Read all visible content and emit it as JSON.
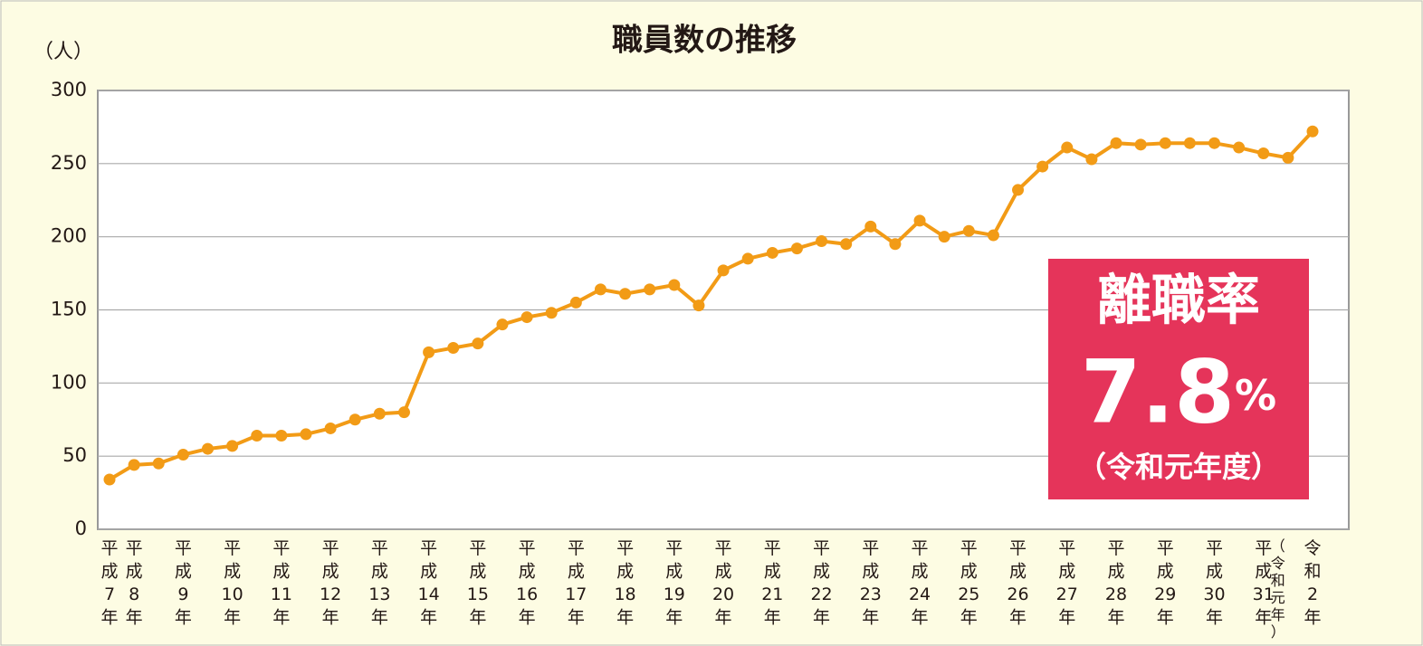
{
  "chart_data": {
    "type": "line",
    "title": "職員数の推移",
    "y_label": "（人）",
    "categories": [
      "平成7年",
      "平成8年",
      null,
      "平成9年",
      null,
      "平成10年",
      null,
      "平成11年",
      null,
      "平成12年",
      null,
      "平成13年",
      null,
      "平成14年",
      null,
      "平成15年",
      null,
      "平成16年",
      null,
      "平成17年",
      null,
      "平成18年",
      null,
      "平成19年",
      null,
      "平成20年",
      null,
      "平成21年",
      null,
      "平成22年",
      null,
      "平成23年",
      null,
      "平成24年",
      null,
      "平成25年",
      null,
      "平成26年",
      null,
      "平成27年",
      null,
      "平成28年",
      null,
      "平成29年",
      null,
      "平成30年",
      null,
      "平成31年",
      null,
      "令和2年"
    ],
    "category_note": "（令和元年）",
    "series": [
      {
        "name": "職員数",
        "color": "#f29b16",
        "values": [
          34,
          44,
          45,
          51,
          55,
          57,
          64,
          64,
          65,
          69,
          75,
          79,
          80,
          121,
          124,
          127,
          140,
          145,
          148,
          155,
          164,
          161,
          164,
          167,
          153,
          177,
          185,
          189,
          192,
          197,
          195,
          207,
          195,
          211,
          200,
          204,
          201,
          232,
          248,
          261,
          253,
          264,
          263,
          264,
          264,
          264,
          261,
          257,
          254,
          272
        ]
      }
    ],
    "ylim": [
      0,
      300
    ],
    "yticks": [
      0,
      50,
      100,
      150,
      200,
      250,
      300
    ],
    "grid": true,
    "callout": {
      "heading": "離職率",
      "value": "7.8%",
      "note": "（令和元年度）",
      "color": "#e5345a"
    }
  }
}
